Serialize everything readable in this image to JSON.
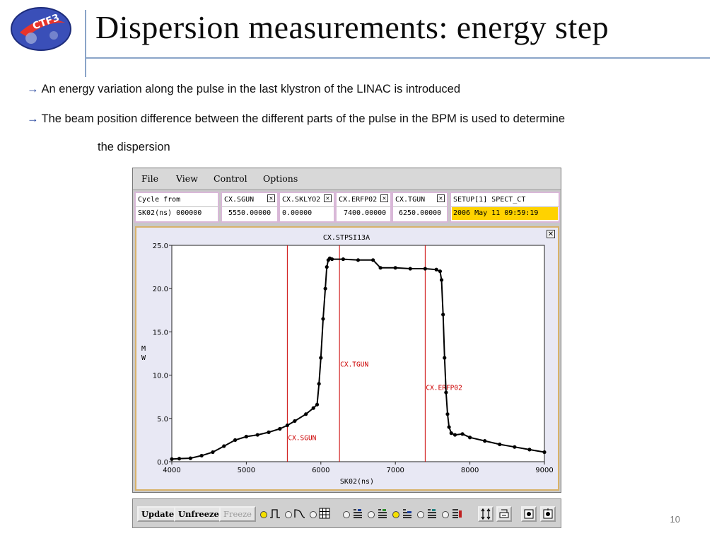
{
  "slide": {
    "title": "Dispersion measurements: energy step",
    "bullet1": "An energy variation along the pulse in the last klystron of the LINAC is introduced",
    "bullet2": "The beam position difference between the different parts of the pulse in the BPM is used to determine",
    "bullet2_cont": "the dispersion",
    "arrow": "→",
    "page_number": "10",
    "logo_text": "CTF3"
  },
  "app": {
    "menu": [
      "File",
      "View",
      "Control",
      "Options"
    ],
    "fields": [
      {
        "label": "Cycle from",
        "value": "SK02(ns)   000000"
      },
      {
        "label": "CX.SGUN",
        "value": "5550.00000"
      },
      {
        "label": "CX.SKLYO2",
        "value": "0.00000"
      },
      {
        "label": "CX.ERFP02",
        "value": "7400.00000"
      },
      {
        "label": "CX.TGUN",
        "value": "6250.00000"
      },
      {
        "label": "SETUP[1] SPECT_CT",
        "value": "2006 May 11 09:59:19"
      }
    ],
    "close_glyph": "✕",
    "toolbar": {
      "update": "Update",
      "unfreeze": "Unfreeze",
      "freeze": "Freeze"
    }
  },
  "colors": {
    "marker_line": "#cc0000",
    "timestamp_bg": "#ffd200",
    "field_border": "#d9b8d8",
    "plot_bg": "#e8e8f4"
  },
  "chart_data": {
    "type": "line",
    "title": "CX.STPSI13A",
    "xlabel": "SK02(ns)",
    "ylabel": "MW",
    "xlim": [
      4000,
      9000
    ],
    "ylim": [
      0,
      25
    ],
    "xticks": [
      4000,
      5000,
      6000,
      7000,
      8000,
      9000
    ],
    "yticks": [
      "0.0",
      "5.0",
      "10.0",
      "15.0",
      "20.0",
      "25.0"
    ],
    "series": [
      {
        "x": [
          3950,
          4100,
          4250,
          4400,
          4550,
          4700,
          4850,
          5000,
          5150,
          5300,
          5450,
          5550,
          5650,
          5800,
          5900,
          5950,
          5975,
          6000,
          6030,
          6060,
          6080,
          6100,
          6120,
          6150,
          6300,
          6500,
          6700,
          6800,
          7000,
          7200,
          7400,
          7550,
          7600,
          7620,
          7640,
          7660,
          7680,
          7700,
          7720,
          7750,
          7800,
          7900,
          8000,
          8200,
          8400,
          8600,
          8800,
          9000
        ],
        "y": [
          0.3,
          0.35,
          0.4,
          0.7,
          1.1,
          1.8,
          2.5,
          2.9,
          3.1,
          3.4,
          3.8,
          4.2,
          4.7,
          5.5,
          6.2,
          6.6,
          9.0,
          12.0,
          16.5,
          20.0,
          22.5,
          23.3,
          23.5,
          23.4,
          23.4,
          23.3,
          23.3,
          22.4,
          22.4,
          22.3,
          22.3,
          22.2,
          22.0,
          21.0,
          17.0,
          12.0,
          8.0,
          5.5,
          4.0,
          3.3,
          3.1,
          3.2,
          2.8,
          2.4,
          2.0,
          1.7,
          1.4,
          1.1
        ]
      }
    ],
    "markers": [
      {
        "name": "CX.SGUN",
        "x": 5550,
        "label_y": 2.5
      },
      {
        "name": "CX.TGUN",
        "x": 6250,
        "label_y": 11.0
      },
      {
        "name": "CX.ERFP02",
        "x": 7400,
        "label_y": 8.3
      }
    ]
  }
}
